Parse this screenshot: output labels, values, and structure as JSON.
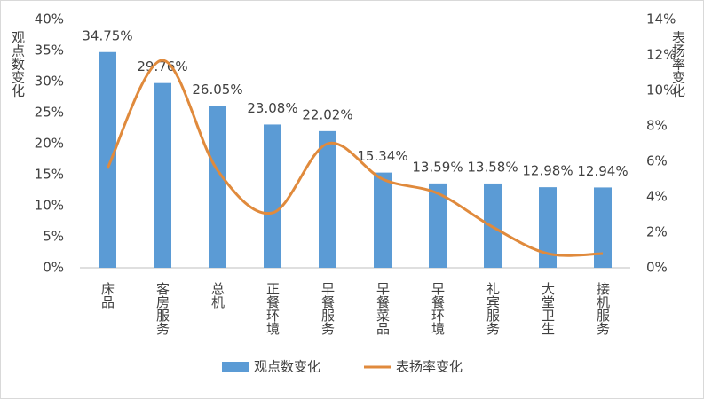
{
  "chart_data": {
    "type": "bar_line",
    "y_label": "观点数变化",
    "y2_label": "表扬率变化",
    "categories": [
      "床品",
      "客房服务",
      "总机",
      "正餐环境",
      "早餐服务",
      "早餐菜品",
      "早餐环境",
      "礼宾服务",
      "大堂卫生",
      "接机服务"
    ],
    "series": [
      {
        "name": "观点数变化",
        "type": "bar",
        "color": "#5b9bd5",
        "values": [
          34.75,
          29.76,
          26.05,
          23.08,
          22.02,
          15.34,
          13.59,
          13.58,
          12.98,
          12.94
        ],
        "value_labels": [
          "34.75%",
          "29.76%",
          "26.05%",
          "23.08%",
          "22.02%",
          "15.34%",
          "13.59%",
          "13.58%",
          "12.98%",
          "12.94%"
        ]
      },
      {
        "name": "表扬率变化",
        "type": "line",
        "axis": "y2",
        "color": "#e08a3c",
        "values": [
          5.6,
          11.7,
          5.5,
          3.1,
          7.0,
          5.0,
          4.2,
          2.3,
          0.8,
          0.8
        ]
      }
    ],
    "ylim": [
      0,
      40
    ],
    "yticks": [
      {
        "value": 0,
        "label": "0%"
      },
      {
        "value": 5,
        "label": "5%"
      },
      {
        "value": 10,
        "label": "10%"
      },
      {
        "value": 15,
        "label": "15%"
      },
      {
        "value": 20,
        "label": "20%"
      },
      {
        "value": 25,
        "label": "25%"
      },
      {
        "value": 30,
        "label": "30%"
      },
      {
        "value": 35,
        "label": "35%"
      },
      {
        "value": 40,
        "label": "40%"
      }
    ],
    "y2lim": [
      0,
      14
    ],
    "y2ticks": [
      {
        "value": 0,
        "label": "0%"
      },
      {
        "value": 2,
        "label": "2%"
      },
      {
        "value": 4,
        "label": "4%"
      },
      {
        "value": 6,
        "label": "6%"
      },
      {
        "value": 8,
        "label": "8%"
      },
      {
        "value": 10,
        "label": "10%"
      },
      {
        "value": 12,
        "label": "12%"
      },
      {
        "value": 14,
        "label": "14%"
      }
    ],
    "legend": "bottom"
  }
}
